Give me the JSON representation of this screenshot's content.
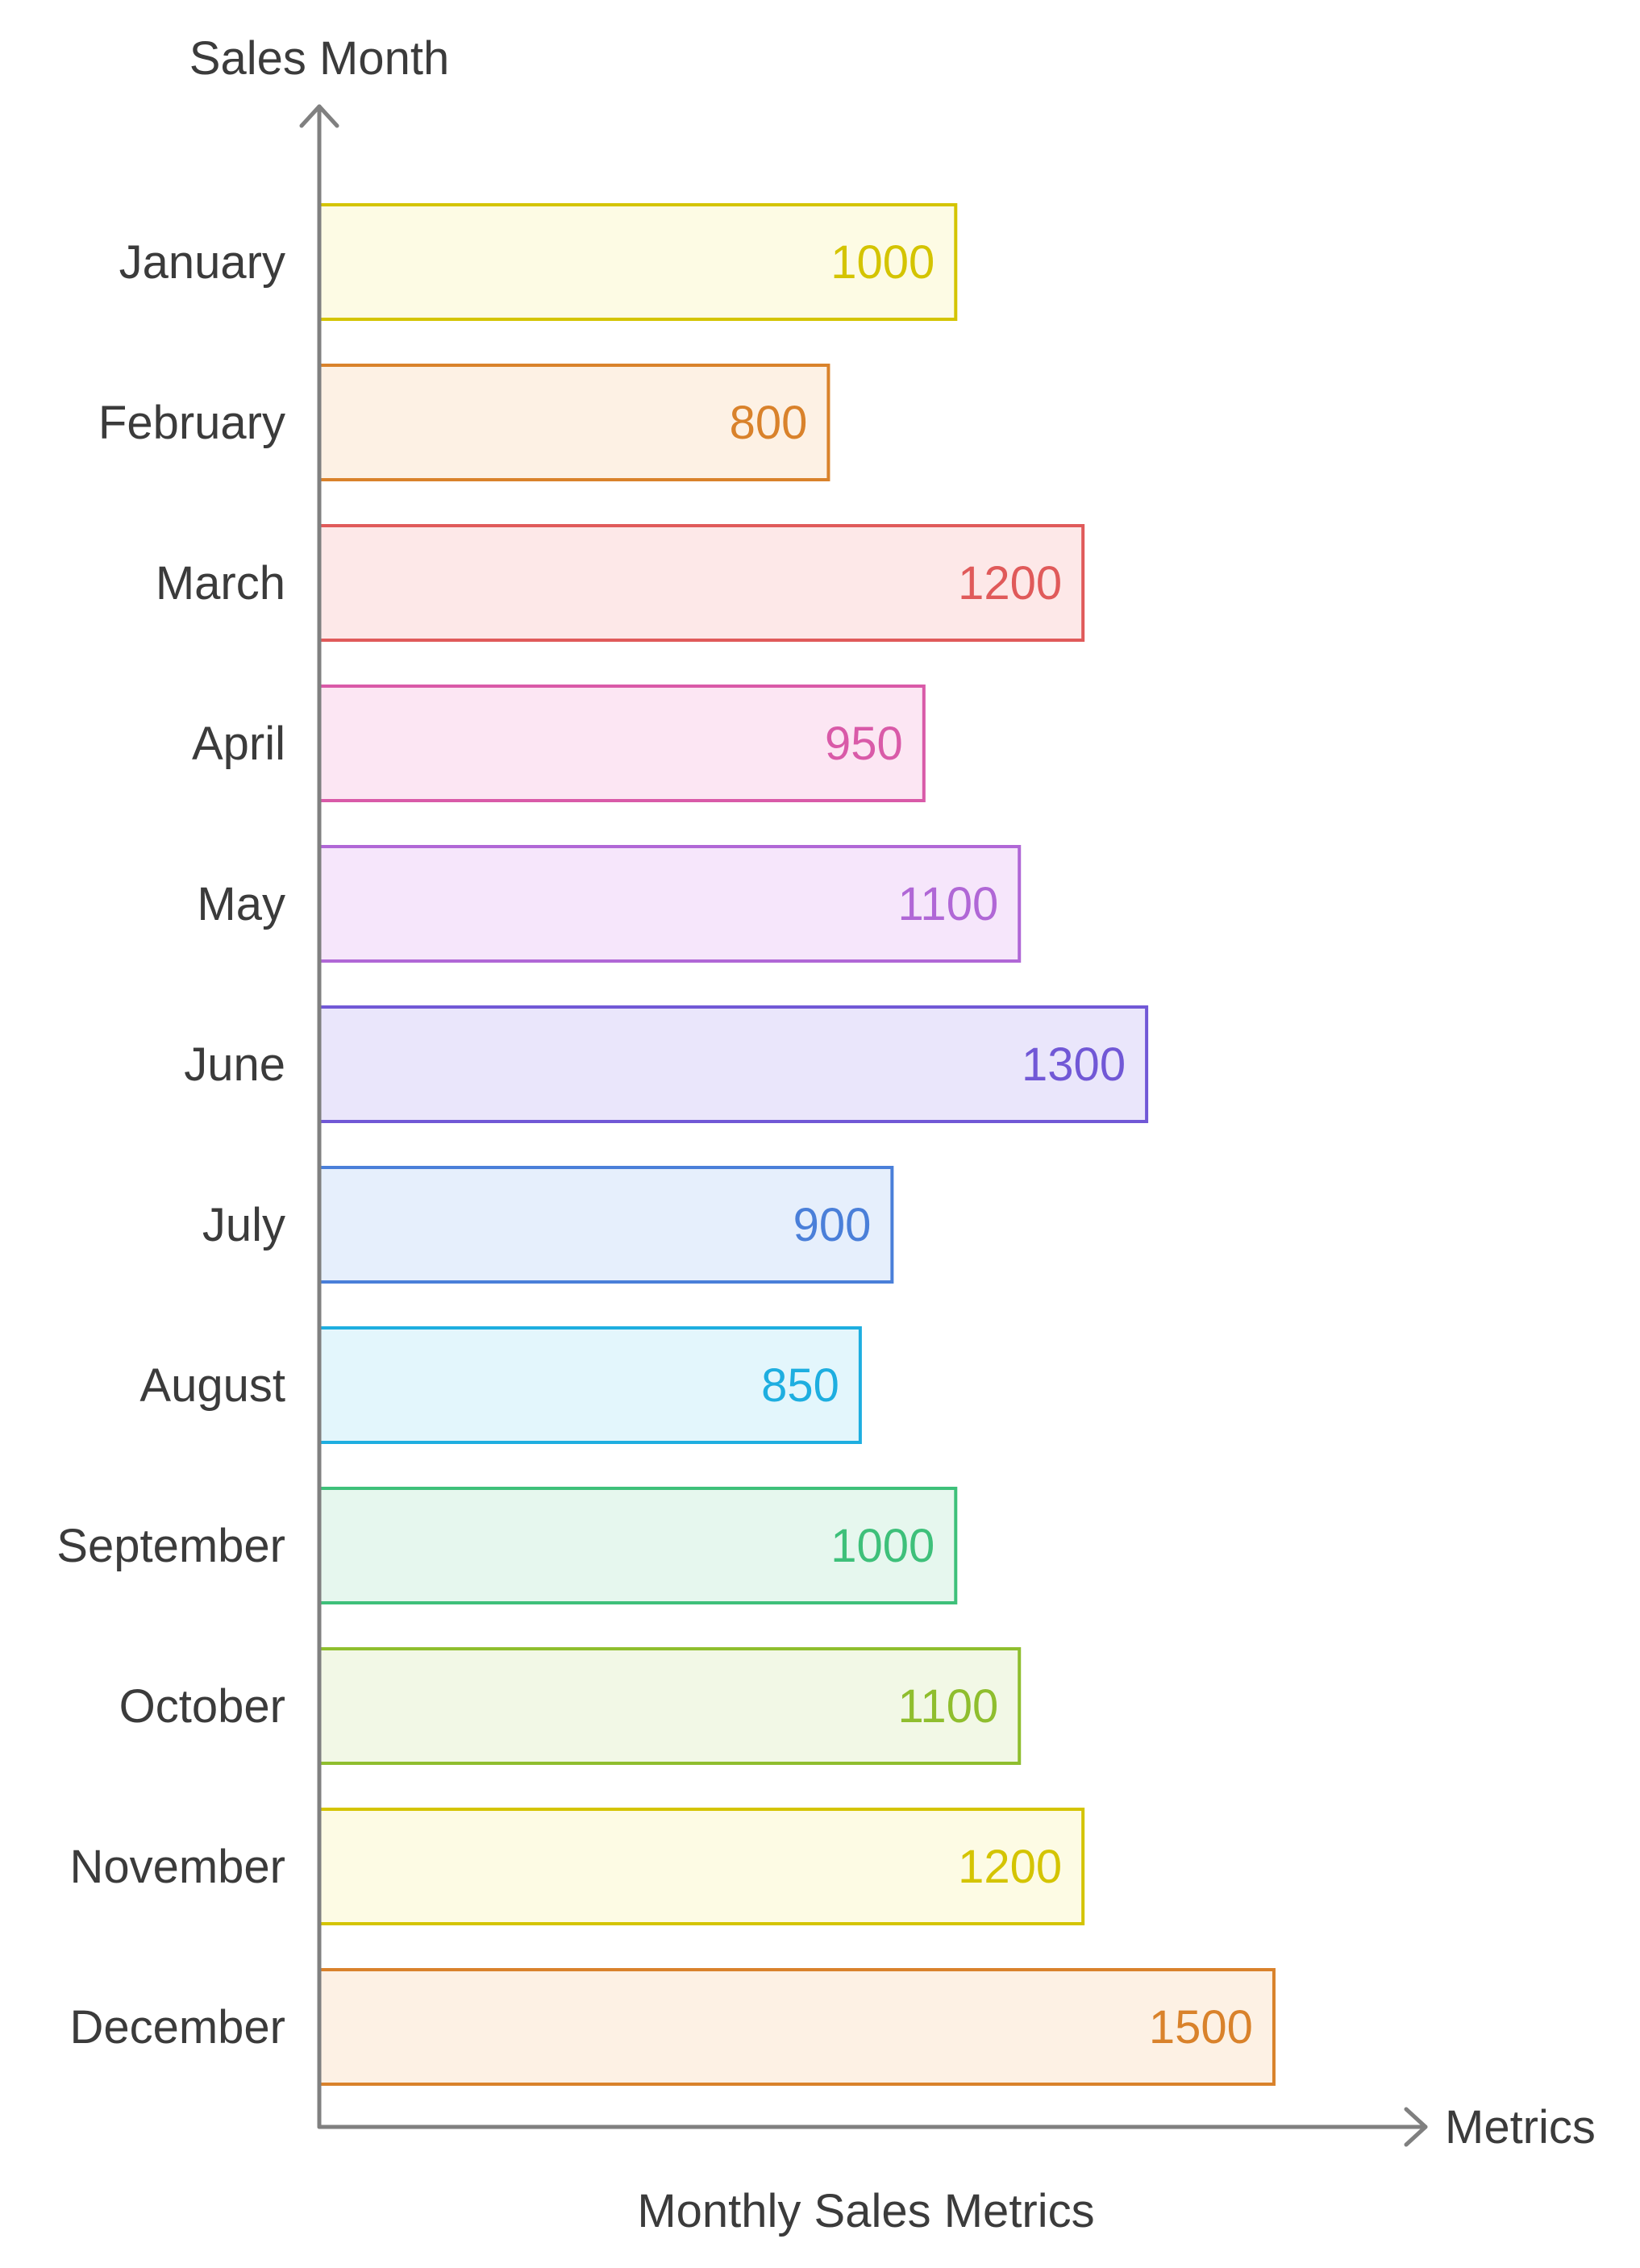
{
  "chart_data": {
    "type": "bar",
    "orientation": "horizontal",
    "title": "Monthly Sales Metrics",
    "xlabel": "Metrics",
    "ylabel": "Sales Month",
    "categories": [
      "January",
      "February",
      "March",
      "April",
      "May",
      "June",
      "July",
      "August",
      "September",
      "October",
      "November",
      "December"
    ],
    "values": [
      1000,
      800,
      1200,
      950,
      1100,
      1300,
      900,
      850,
      1000,
      1100,
      1200,
      1500
    ],
    "xlim": [
      0,
      1500
    ],
    "grid": false,
    "legend": "none",
    "colors": {
      "stroke": [
        "#d4c400",
        "#d9822b",
        "#e05a5a",
        "#d95aa8",
        "#b067d6",
        "#7158d6",
        "#4a7fd9",
        "#1eaee0",
        "#3ec07a",
        "#8fbe2e",
        "#d4c400",
        "#d9822b"
      ],
      "fill": [
        "#fdfbe4",
        "#fdf1e4",
        "#fde8e8",
        "#fce6f3",
        "#f6e6fb",
        "#eae6fb",
        "#e6effc",
        "#e3f6fc",
        "#e6f7ee",
        "#f2f8e6",
        "#fdfbe4",
        "#fdf1e4"
      ],
      "axis": "#808080",
      "text": "#3b3b3b"
    }
  }
}
